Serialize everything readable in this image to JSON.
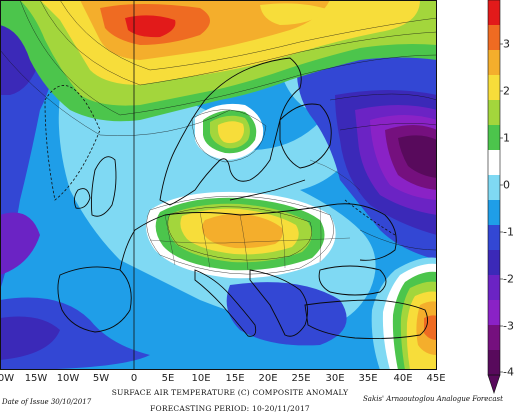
{
  "map": {
    "title": "SURFACE AIR TEMPERATURE (C) COMPOSITE ANOMALY",
    "period": "FORECASTING PERIOD: 10-20/11/2017",
    "issue_date": "Date of Issue 30/10/2017",
    "credit": "Sakis' Arnaoutoglou Analogue Forecast",
    "lon_labels": [
      "0W",
      "15W",
      "10W",
      "5W",
      "0",
      "5E",
      "10E",
      "15E",
      "20E",
      "25E",
      "30E",
      "35E",
      "40E",
      "45E"
    ]
  },
  "colorbar": {
    "labels": [
      "3",
      "2",
      "1",
      "0",
      "-1",
      "-2",
      "-3",
      "-4"
    ],
    "colors": {
      "plus_4": "#e21a1a",
      "plus_3": "#ef6b22",
      "plus_2": "#f4ae2c",
      "plus_1_5": "#f7dd3a",
      "plus_1": "#a3d63c",
      "plus_0_5": "#4cc54c",
      "zero": "#ffffff",
      "minus_0_5": "#7fd9f3",
      "minus_1": "#1f9ee8",
      "minus_1_5": "#3347d4",
      "minus_2": "#3b29b8",
      "minus_2_5": "#6b23c4",
      "minus_3": "#8a22c6",
      "minus_3_5": "#75107e",
      "minus_4": "#580a5c"
    }
  }
}
